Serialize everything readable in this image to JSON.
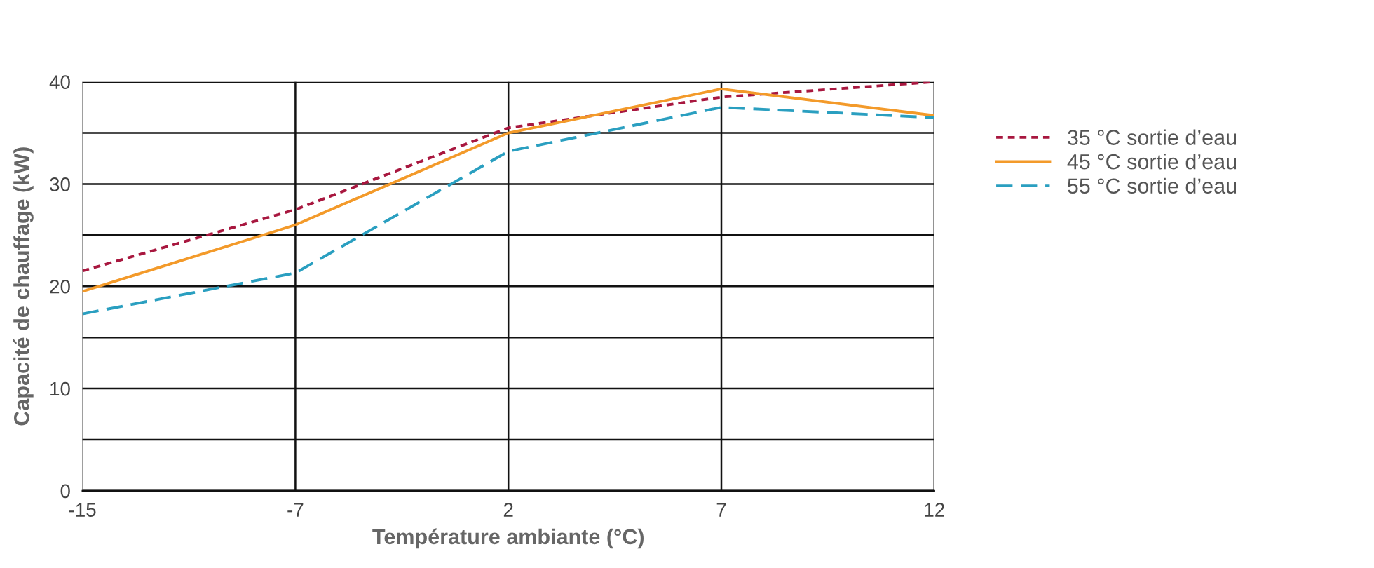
{
  "chart_data": {
    "type": "line",
    "xlabel": "Température ambiante (°C)",
    "ylabel": "Capacité de chauffage (kW)",
    "categories": [
      "-15",
      "-7",
      "2",
      "7",
      "12"
    ],
    "series": [
      {
        "name": "35 °C sortie d’eau",
        "color": "#a8173f",
        "line_style": "dotted",
        "values": [
          21.5,
          27.5,
          35.5,
          38.5,
          40
        ]
      },
      {
        "name": "45 °C sortie d’eau",
        "color": "#f39a2a",
        "line_style": "solid",
        "values": [
          19.5,
          26,
          35,
          39.3,
          36.7
        ]
      },
      {
        "name": "55 °C sortie d’eau",
        "color": "#2a9fc0",
        "line_style": "dashed",
        "values": [
          17.3,
          21.3,
          33.2,
          37.5,
          36.5
        ]
      }
    ],
    "ylim": [
      0,
      40
    ],
    "yticks": [
      0,
      {
        "value": 5,
        "label": null
      },
      10,
      {
        "value": 15,
        "label": null
      },
      20,
      {
        "value": 25,
        "label": null
      },
      30,
      {
        "value": 35,
        "label": null
      },
      40
    ],
    "grid": true,
    "legend": "right",
    "marker": "none"
  }
}
